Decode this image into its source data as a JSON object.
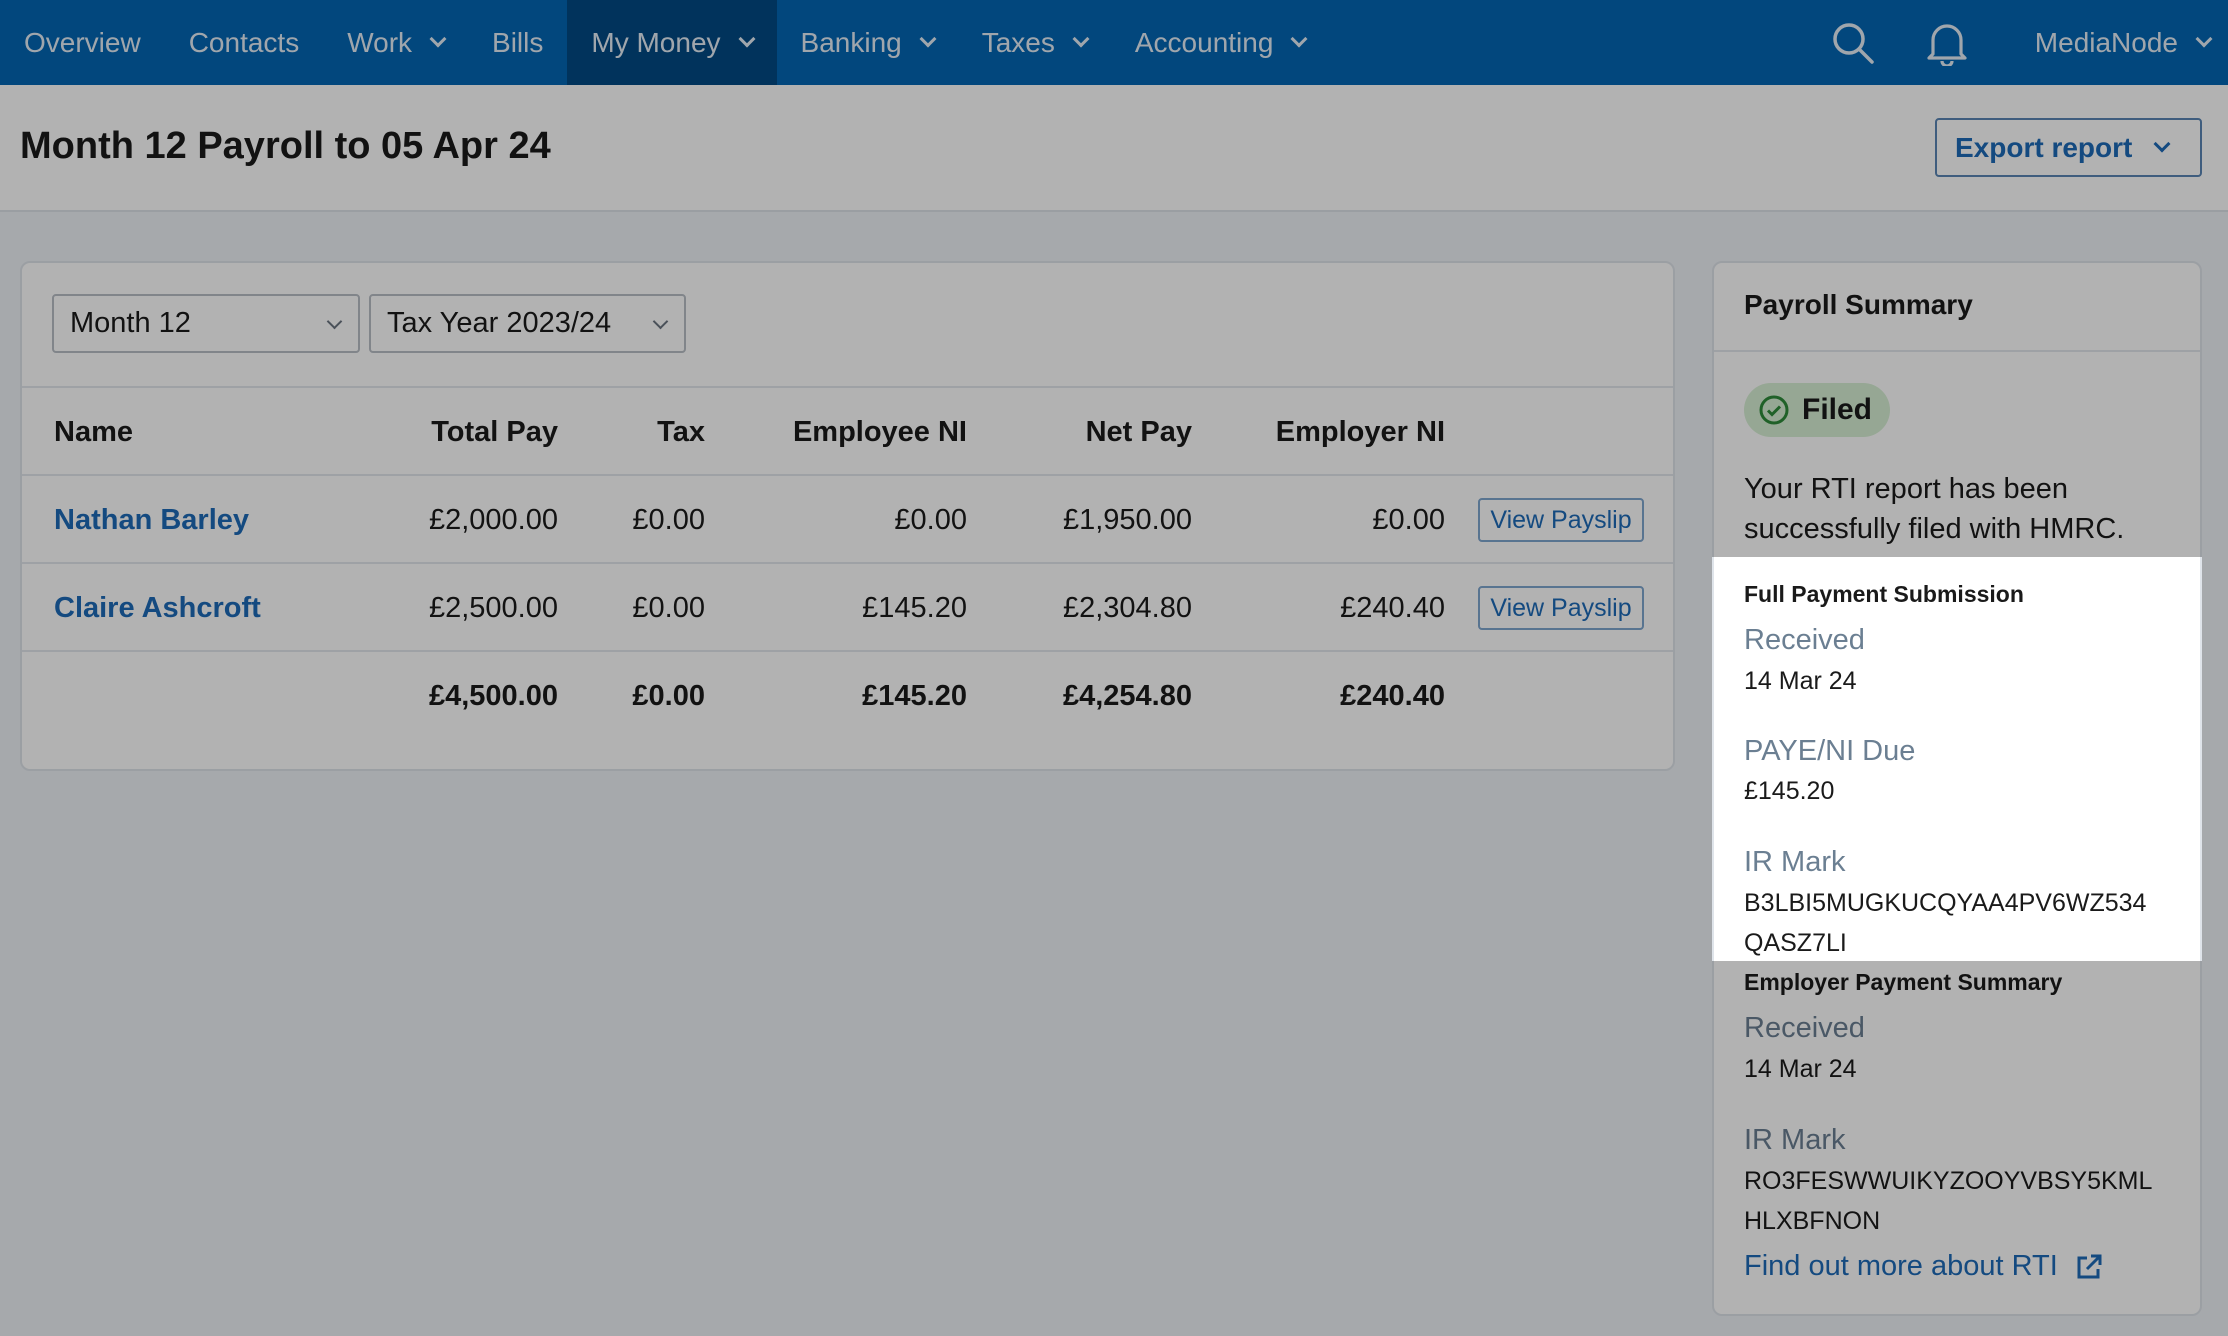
{
  "nav": {
    "items": [
      {
        "label": "Overview",
        "dropdown": false
      },
      {
        "label": "Contacts",
        "dropdown": false
      },
      {
        "label": "Work",
        "dropdown": true
      },
      {
        "label": "Bills",
        "dropdown": false
      },
      {
        "label": "My Money",
        "dropdown": true,
        "active": true
      },
      {
        "label": "Banking",
        "dropdown": true
      },
      {
        "label": "Taxes",
        "dropdown": true
      },
      {
        "label": "Accounting",
        "dropdown": true
      }
    ],
    "account": "MediaNode"
  },
  "header": {
    "title": "Month 12 Payroll to 05 Apr 24",
    "export_label": "Export report"
  },
  "filters": {
    "period": "Month 12",
    "tax_year": "Tax Year 2023/24"
  },
  "table": {
    "columns": [
      "Name",
      "Total Pay",
      "Tax",
      "Employee NI",
      "Net Pay",
      "Employer NI"
    ],
    "rows": [
      [
        "Nathan Barley",
        "£2,000.00",
        "£0.00",
        "£0.00",
        "£1,950.00",
        "£0.00"
      ],
      [
        "Claire Ashcroft",
        "£2,500.00",
        "£0.00",
        "£145.20",
        "£2,304.80",
        "£240.40"
      ]
    ],
    "totals": [
      "",
      "£4,500.00",
      "£0.00",
      "£145.20",
      "£4,254.80",
      "£240.40"
    ],
    "payslip_label": "View Payslip"
  },
  "summary": {
    "title": "Payroll Summary",
    "status": "Filed",
    "status_color": "#2e8b3a",
    "message_1": "Your RTI report has been",
    "message_2": "successfully filed with HMRC.",
    "fps": {
      "title": "Full Payment Submission",
      "received_label": "Received",
      "received": "14 Mar 24",
      "due_label": "PAYE/NI Due",
      "due": "£145.20",
      "ir_label": "IR Mark",
      "ir_1": "B3LBI5MUGKUCQYAA4PV6WZ534",
      "ir_2": "QASZ7LI"
    },
    "eps": {
      "title": "Employer Payment Summary",
      "received_label": "Received",
      "received": "14 Mar 24",
      "ir_label": "IR Mark",
      "ir_1": "RO3FESWWUIKYZOOYVBSY5KML",
      "ir_2": "HLXBFNON"
    },
    "link": "Find out more about RTI"
  }
}
